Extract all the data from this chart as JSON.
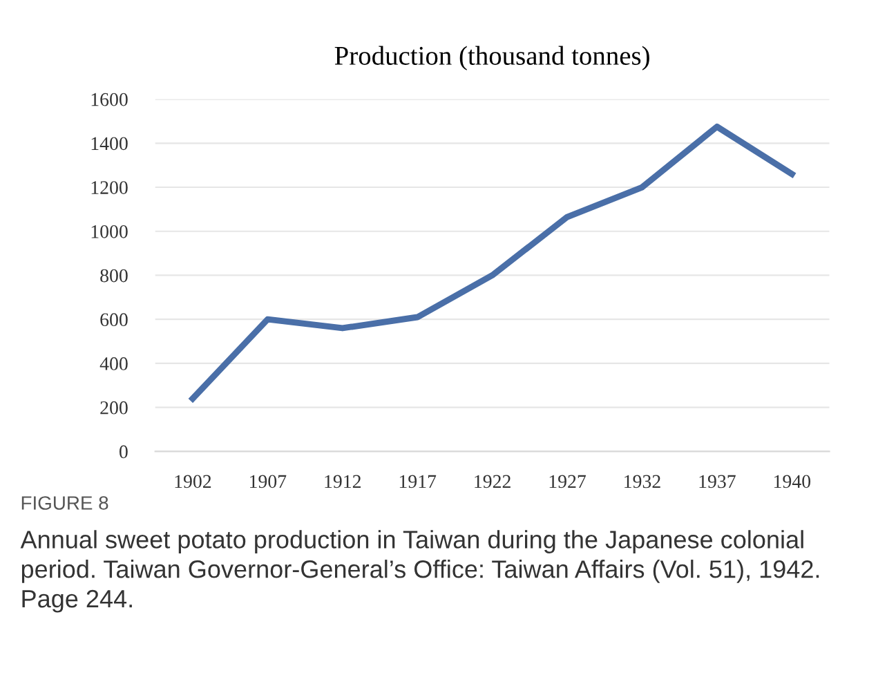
{
  "chart_data": {
    "type": "line",
    "title": "Production (thousand tonnes)",
    "categories": [
      "1902",
      "1907",
      "1912",
      "1917",
      "1922",
      "1927",
      "1932",
      "1937",
      "1940"
    ],
    "series": [
      {
        "color": "#4a6fa8",
        "values": [
          240,
          600,
          560,
          610,
          800,
          1065,
          1200,
          1475,
          1260
        ]
      }
    ],
    "ylim": [
      0,
      1600
    ],
    "yticks": [
      0,
      200,
      400,
      600,
      800,
      1000,
      1200,
      1400,
      1600
    ],
    "grid": "y",
    "marker": "none",
    "line_style": "solid",
    "annotations": [
      "FIGURE 8",
      "Annual sweet potato production in Taiwan during the Japanese colonial period. Taiwan Governor-General’s Office: Taiwan Affairs (Vol. 51), 1942. Page 244."
    ]
  }
}
